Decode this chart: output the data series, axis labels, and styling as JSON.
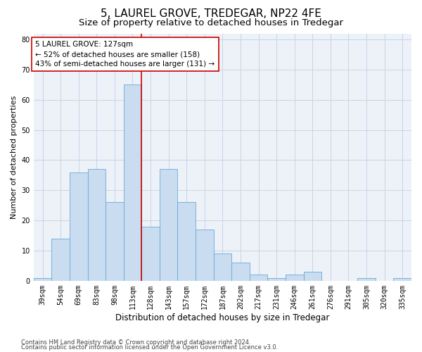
{
  "title1": "5, LAUREL GROVE, TREDEGAR, NP22 4FE",
  "title2": "Size of property relative to detached houses in Tredegar",
  "xlabel": "Distribution of detached houses by size in Tredegar",
  "ylabel": "Number of detached properties",
  "categories": [
    "39sqm",
    "54sqm",
    "69sqm",
    "83sqm",
    "98sqm",
    "113sqm",
    "128sqm",
    "143sqm",
    "157sqm",
    "172sqm",
    "187sqm",
    "202sqm",
    "217sqm",
    "231sqm",
    "246sqm",
    "261sqm",
    "276sqm",
    "291sqm",
    "305sqm",
    "320sqm",
    "335sqm"
  ],
  "values": [
    1,
    14,
    36,
    37,
    26,
    65,
    18,
    37,
    26,
    17,
    9,
    6,
    2,
    1,
    2,
    3,
    0,
    0,
    1,
    0,
    1
  ],
  "bar_color": "#c9dcf0",
  "bar_edge_color": "#6aaad4",
  "vline_color": "#cc0000",
  "annotation_line1": "5 LAUREL GROVE: 127sqm",
  "annotation_line2": "← 52% of detached houses are smaller (158)",
  "annotation_line3": "43% of semi-detached houses are larger (131) →",
  "ylim": [
    0,
    82
  ],
  "yticks": [
    0,
    10,
    20,
    30,
    40,
    50,
    60,
    70,
    80
  ],
  "grid_color": "#c8d4e8",
  "bg_color": "#edf2f8",
  "footer1": "Contains HM Land Registry data © Crown copyright and database right 2024.",
  "footer2": "Contains public sector information licensed under the Open Government Licence v3.0.",
  "title1_fontsize": 11,
  "title2_fontsize": 9.5,
  "xlabel_fontsize": 8.5,
  "ylabel_fontsize": 8,
  "tick_fontsize": 7,
  "annotation_fontsize": 7.5,
  "footer_fontsize": 6.0
}
